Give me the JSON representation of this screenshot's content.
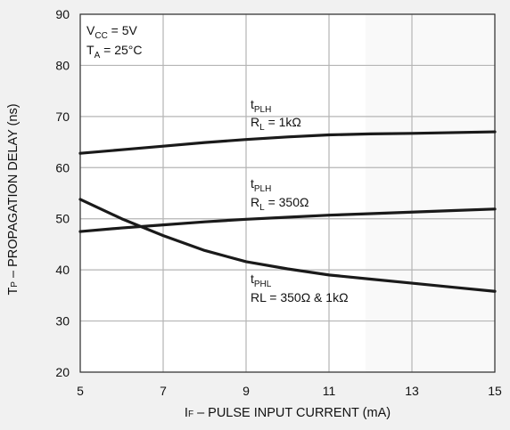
{
  "chart_data": {
    "type": "line",
    "title": "",
    "xlabel_prefix": "I",
    "xlabel_sub": "F",
    "xlabel_suffix": " – PULSE INPUT CURRENT (mA)",
    "ylabel_prefix": "T",
    "ylabel_sub": "P",
    "ylabel_suffix": " – PROPAGATION DELAY (ns)",
    "xlim": [
      5,
      15
    ],
    "ylim": [
      20,
      90
    ],
    "xticks": [
      5,
      7,
      9,
      11,
      13,
      15
    ],
    "yticks": [
      20,
      30,
      40,
      50,
      60,
      70,
      80,
      90
    ],
    "grid": true,
    "conditions": [
      {
        "prefix": "V",
        "sub": "CC",
        "suffix": " = 5V"
      },
      {
        "prefix": "T",
        "sub": "A",
        "suffix": " = 25°C"
      }
    ],
    "series": [
      {
        "label_main": "t",
        "label_sub": "PLH",
        "label_line2_prefix": "R",
        "label_line2_sub": "L",
        "label_line2_suffix": " = 1kΩ",
        "x": [
          5,
          6,
          7,
          8,
          9,
          10,
          11,
          12,
          13,
          14,
          15
        ],
        "y": [
          62.8,
          63.5,
          64.2,
          64.9,
          65.5,
          66.0,
          66.4,
          66.6,
          66.7,
          66.85,
          67.0
        ]
      },
      {
        "label_main": "t",
        "label_sub": "PLH",
        "label_line2_prefix": "R",
        "label_line2_sub": "L",
        "label_line2_suffix": " = 350Ω",
        "x": [
          5,
          6,
          7,
          8,
          9,
          10,
          11,
          12,
          13,
          14,
          15
        ],
        "y": [
          47.5,
          48.2,
          48.8,
          49.4,
          49.9,
          50.3,
          50.7,
          51.0,
          51.3,
          51.6,
          51.9
        ]
      },
      {
        "label_main": "t",
        "label_sub": "PHL",
        "label_line2_prefix": "RL",
        "label_line2_sub": "",
        "label_line2_suffix": " = 350Ω & 1kΩ",
        "x": [
          5,
          6,
          7,
          8,
          9,
          10,
          11,
          12,
          13,
          14,
          15
        ],
        "y": [
          53.8,
          50.0,
          46.7,
          43.8,
          41.6,
          40.2,
          39.0,
          38.2,
          37.4,
          36.6,
          35.8
        ]
      }
    ]
  }
}
